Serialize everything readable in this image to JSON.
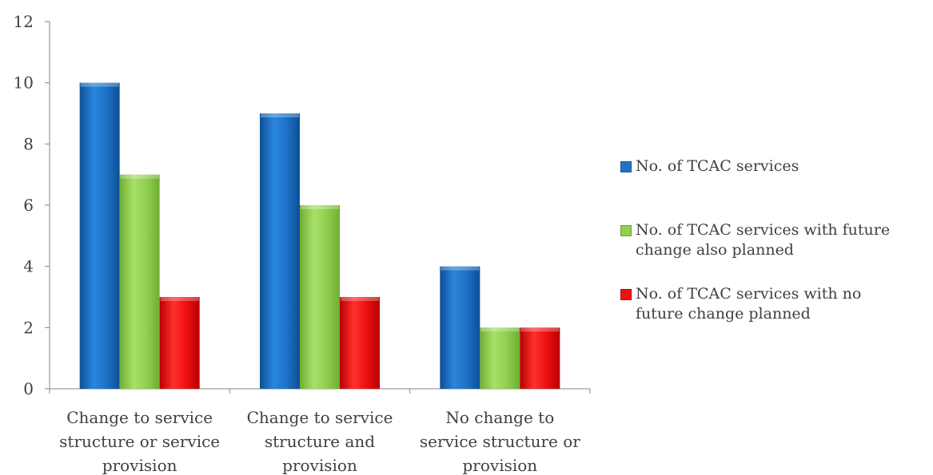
{
  "chart_data": {
    "type": "bar",
    "title": "",
    "xlabel": "",
    "ylabel": "",
    "ylim": [
      0,
      12
    ],
    "yticks": [
      0,
      2,
      4,
      6,
      8,
      10,
      12
    ],
    "grid": false,
    "legend_position": "right",
    "categories": [
      [
        "Change to service",
        "structure or service",
        "provision"
      ],
      [
        "Change to service",
        "structure and",
        "provision"
      ],
      [
        "No change to",
        "service structure or",
        "provision"
      ]
    ],
    "series": [
      {
        "name": "No. of TCAC services",
        "values": [
          10,
          9,
          4
        ],
        "color": "#1e73c8",
        "legend_lines": [
          "No. of TCAC services"
        ]
      },
      {
        "name": "No. of TCAC services with future change also planned",
        "values": [
          7,
          6,
          2
        ],
        "color": "#92d050",
        "legend_lines": [
          "No. of TCAC services with future",
          "change also planned"
        ]
      },
      {
        "name": "No. of TCAC services with no future change planned",
        "values": [
          3,
          3,
          2
        ],
        "color": "#ee1111",
        "legend_lines": [
          "No. of TCAC services with no",
          "future change planned"
        ]
      }
    ]
  }
}
